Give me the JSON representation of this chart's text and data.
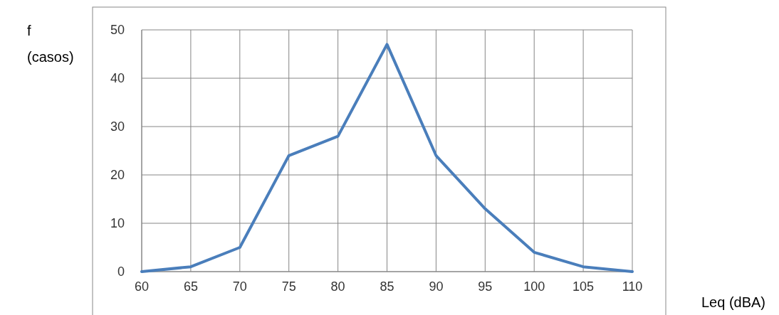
{
  "chart_data": {
    "type": "line",
    "xlabel": "Leq (dBA)",
    "ylabel": "f (casos)",
    "x": [
      60,
      65,
      70,
      75,
      80,
      85,
      90,
      95,
      100,
      105,
      110
    ],
    "series": [
      {
        "color": "#4a7ebb",
        "values": [
          0,
          1,
          5,
          24,
          28,
          47,
          24,
          13,
          4,
          1,
          0
        ]
      }
    ],
    "xlim": [
      60,
      110
    ],
    "xticks": [
      60,
      65,
      70,
      75,
      80,
      85,
      90,
      95,
      100,
      105,
      110
    ],
    "ylim": [
      0,
      50
    ],
    "yticks": [
      0,
      10,
      20,
      30,
      40,
      50
    ],
    "grid": true,
    "marker": "none",
    "line_style": "solid"
  }
}
